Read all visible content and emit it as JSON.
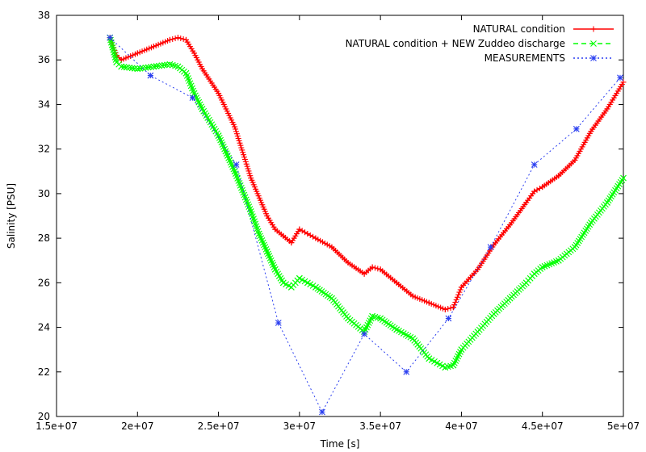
{
  "chart_data": {
    "type": "line",
    "title": "",
    "xlabel": "Time [s]",
    "ylabel": "Salinity [PSU]",
    "xlim": [
      15000000,
      50000000
    ],
    "ylim": [
      20,
      38
    ],
    "grid": false,
    "legend_position": "top-right",
    "x_ticks": [
      15000000,
      20000000,
      25000000,
      30000000,
      35000000,
      40000000,
      45000000,
      50000000
    ],
    "x_tick_labels": [
      "1.5e+07",
      "2e+07",
      "2.5e+07",
      "3e+07",
      "3.5e+07",
      "4e+07",
      "4.5e+07",
      "5e+07"
    ],
    "y_ticks": [
      20,
      22,
      24,
      26,
      28,
      30,
      32,
      34,
      36,
      38
    ],
    "y_tick_labels": [
      "20",
      "22",
      "24",
      "26",
      "28",
      "30",
      "32",
      "34",
      "36",
      "38"
    ],
    "series": [
      {
        "name": "NATURAL condition",
        "color": "#ff0000",
        "marker": "plus",
        "line_style": "solid",
        "x": [
          18300000,
          18700000,
          19000000,
          20000000,
          21000000,
          22000000,
          22500000,
          23000000,
          23500000,
          24000000,
          25000000,
          26000000,
          27000000,
          28000000,
          28500000,
          29000000,
          29500000,
          30000000,
          30500000,
          31000000,
          32000000,
          33000000,
          34000000,
          34500000,
          35000000,
          36000000,
          37000000,
          38000000,
          39000000,
          39500000,
          40000000,
          41000000,
          42000000,
          43000000,
          44000000,
          44500000,
          45000000,
          46000000,
          47000000,
          48000000,
          49000000,
          50000000
        ],
        "y": [
          37.0,
          36.2,
          36.0,
          36.3,
          36.6,
          36.9,
          37.0,
          36.9,
          36.3,
          35.6,
          34.5,
          33.0,
          30.7,
          29.0,
          28.4,
          28.1,
          27.8,
          28.4,
          28.2,
          28.0,
          27.6,
          26.9,
          26.4,
          26.7,
          26.6,
          26.0,
          25.4,
          25.1,
          24.8,
          24.9,
          25.8,
          26.6,
          27.7,
          28.6,
          29.6,
          30.1,
          30.3,
          30.8,
          31.5,
          32.8,
          33.8,
          35.0
        ]
      },
      {
        "name": "NATURAL condition + NEW Zuddeo discharge",
        "color": "#00ff00",
        "marker": "cross",
        "line_style": "dashed",
        "x": [
          18300000,
          18700000,
          19000000,
          20000000,
          21000000,
          22000000,
          22500000,
          23000000,
          23500000,
          24000000,
          25000000,
          26000000,
          27000000,
          27500000,
          28000000,
          28500000,
          29000000,
          29500000,
          30000000,
          30500000,
          31000000,
          32000000,
          33000000,
          34000000,
          34500000,
          35000000,
          36000000,
          37000000,
          38000000,
          38500000,
          39000000,
          39500000,
          40000000,
          41000000,
          42000000,
          43000000,
          44000000,
          44500000,
          45000000,
          46000000,
          47000000,
          48000000,
          49000000,
          50000000
        ],
        "y": [
          37.0,
          35.9,
          35.7,
          35.6,
          35.7,
          35.8,
          35.7,
          35.4,
          34.5,
          33.8,
          32.6,
          31.0,
          29.2,
          28.2,
          27.4,
          26.6,
          26.0,
          25.8,
          26.2,
          26.0,
          25.8,
          25.3,
          24.4,
          23.8,
          24.5,
          24.4,
          23.9,
          23.5,
          22.6,
          22.4,
          22.2,
          22.3,
          23.0,
          23.8,
          24.6,
          25.3,
          26.0,
          26.4,
          26.7,
          27.0,
          27.6,
          28.7,
          29.6,
          30.7
        ]
      },
      {
        "name": "MEASUREMENTS",
        "color": "#2b3ff0",
        "marker": "asterisk",
        "line_style": "dotted",
        "x": [
          18300000,
          20800000,
          23400000,
          26100000,
          28700000,
          31400000,
          34000000,
          36600000,
          39200000,
          41800000,
          44500000,
          47100000,
          49800000
        ],
        "y": [
          37.0,
          35.3,
          34.3,
          31.3,
          24.2,
          20.2,
          23.7,
          22.0,
          24.4,
          27.6,
          31.3,
          32.9,
          35.2
        ]
      }
    ]
  }
}
